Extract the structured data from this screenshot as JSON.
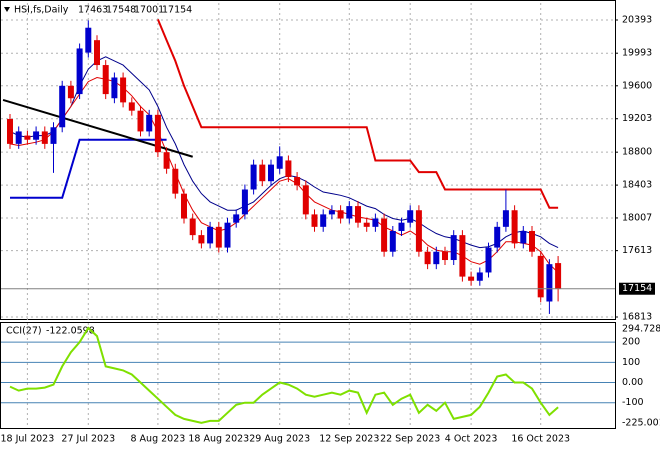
{
  "chart_data": [
    {
      "type": "candlestick",
      "title": "HSI,fs,Daily",
      "categories": [
        null,
        null,
        "18 Jul 2023",
        null,
        null,
        null,
        null,
        null,
        null,
        "27 Jul 2023",
        null,
        null,
        null,
        null,
        null,
        null,
        null,
        "8 Aug 2023",
        null,
        null,
        null,
        null,
        null,
        null,
        "18 Aug 2023",
        null,
        null,
        null,
        null,
        null,
        null,
        "29 Aug 2023",
        null,
        null,
        null,
        null,
        null,
        null,
        null,
        "12 Sep 2023",
        null,
        null,
        null,
        null,
        null,
        null,
        "22 Sep 2023",
        null,
        null,
        null,
        null,
        null,
        null,
        "4 Oct 2023",
        null,
        null,
        null,
        null,
        null,
        null,
        null,
        "16 Oct 2023",
        null,
        null
      ],
      "open": [
        19200,
        18900,
        19000,
        18950,
        19050,
        18900,
        19100,
        19600,
        19500,
        20000,
        20150,
        19850,
        19450,
        19700,
        19400,
        19300,
        19050,
        19250,
        18800,
        18600,
        18300,
        18000,
        17800,
        17700,
        17900,
        17650,
        17950,
        18050,
        18350,
        18650,
        18450,
        18600,
        18700,
        18500,
        18400,
        18050,
        17900,
        18050,
        18100,
        18000,
        18150,
        17950,
        17900,
        18000,
        17600,
        17850,
        17950,
        18100,
        17600,
        17450,
        17600,
        17500,
        17800,
        17300,
        17250,
        17350,
        17650,
        17900,
        18100,
        17700,
        17850,
        17550,
        17000,
        17463
      ],
      "high": [
        19260,
        19110,
        19060,
        19110,
        19110,
        19160,
        19660,
        19660,
        20110,
        20390,
        20210,
        19910,
        19760,
        19760,
        19460,
        19360,
        19310,
        19310,
        18860,
        18660,
        18360,
        18060,
        17860,
        17960,
        17960,
        18010,
        18110,
        18410,
        18710,
        18710,
        18710,
        18870,
        18760,
        18560,
        18460,
        18110,
        18110,
        18160,
        18160,
        18210,
        18210,
        18010,
        18060,
        18060,
        17910,
        18010,
        18160,
        18160,
        17660,
        17660,
        17660,
        17860,
        17860,
        17360,
        17410,
        17710,
        17960,
        18350,
        18160,
        17910,
        17910,
        17610,
        17510,
        17548
      ],
      "low": [
        18840,
        18840,
        18890,
        18890,
        18840,
        18550,
        19040,
        19390,
        19440,
        19940,
        19790,
        19440,
        19390,
        19340,
        19240,
        18990,
        18990,
        18740,
        18540,
        18240,
        17940,
        17740,
        17640,
        17640,
        17590,
        17590,
        17890,
        17990,
        18290,
        18390,
        18390,
        18540,
        18440,
        18340,
        17990,
        17840,
        17840,
        17990,
        17940,
        17940,
        17890,
        17840,
        17840,
        17540,
        17540,
        17790,
        17890,
        17540,
        17390,
        17390,
        17440,
        17440,
        17240,
        17190,
        17190,
        17290,
        17590,
        17840,
        17640,
        17640,
        17540,
        16990,
        16850,
        17001
      ],
      "close": [
        18900,
        19050,
        18950,
        19050,
        18900,
        19100,
        19600,
        19450,
        20050,
        20300,
        19850,
        19500,
        19700,
        19400,
        19300,
        19050,
        19250,
        18800,
        18600,
        18300,
        18000,
        17800,
        17700,
        17900,
        17650,
        17950,
        18050,
        18350,
        18650,
        18450,
        18650,
        18750,
        18500,
        18400,
        18050,
        17900,
        18050,
        18100,
        18000,
        18150,
        17950,
        17900,
        18000,
        17600,
        17850,
        17950,
        18100,
        17600,
        17450,
        17600,
        17500,
        17800,
        17300,
        17250,
        17350,
        17650,
        17900,
        18100,
        17700,
        17850,
        17600,
        17050,
        17450,
        17154
      ],
      "up_color": "#0000cd",
      "down_color": "#e00000",
      "overlays": [
        {
          "color": "#00008b",
          "width": 1,
          "values": [
            19050,
            19000,
            18980,
            19000,
            19000,
            19050,
            19200,
            19350,
            19600,
            19800,
            19900,
            19950,
            19900,
            19850,
            19750,
            19650,
            19550,
            19350,
            19100,
            18900,
            18650,
            18450,
            18300,
            18200,
            18150,
            18100,
            18100,
            18150,
            18200,
            18300,
            18400,
            18480,
            18520,
            18500,
            18450,
            18380,
            18320,
            18300,
            18280,
            18250,
            18200,
            18150,
            18120,
            18050,
            18000,
            17980,
            18000,
            17950,
            17880,
            17820,
            17780,
            17760,
            17720,
            17680,
            17650,
            17660,
            17700,
            17780,
            17830,
            17850,
            17820,
            17780,
            17700,
            17650
          ]
        },
        {
          "color": "#e00000",
          "width": 1,
          "values": [
            18900,
            18880,
            18900,
            18920,
            18950,
            19050,
            19200,
            19350,
            19500,
            19650,
            19700,
            19680,
            19650,
            19580,
            19480,
            19350,
            19250,
            19050,
            18800,
            18550,
            18300,
            18100,
            17950,
            17900,
            17850,
            17880,
            17950,
            18050,
            18150,
            18250,
            18350,
            18450,
            18480,
            18420,
            18300,
            18200,
            18150,
            18100,
            18080,
            18050,
            18020,
            18000,
            17980,
            17900,
            17850,
            17800,
            17850,
            17780,
            17680,
            17620,
            17600,
            17600,
            17550,
            17480,
            17450,
            17500,
            17600,
            17720,
            17720,
            17700,
            17680,
            17600,
            17450,
            17350
          ]
        },
        {
          "color": "#e00000",
          "width": 2,
          "values": [
            null,
            null,
            null,
            null,
            null,
            null,
            null,
            null,
            null,
            null,
            null,
            null,
            null,
            null,
            null,
            null,
            null,
            20400,
            20150,
            19900,
            19600,
            19350,
            19100,
            19100,
            19100,
            19100,
            19100,
            19100,
            19100,
            19100,
            19100,
            19100,
            19100,
            19100,
            19100,
            19100,
            19100,
            19100,
            19100,
            19100,
            19100,
            19100,
            18700,
            18700,
            18700,
            18700,
            18700,
            18560,
            18560,
            18560,
            18350,
            18350,
            18350,
            18350,
            18350,
            18350,
            18350,
            18350,
            18350,
            18350,
            18350,
            18350,
            18130,
            18130
          ]
        },
        {
          "color": "#0000cd",
          "width": 2,
          "values": [
            18250,
            18250,
            18250,
            18250,
            18250,
            18250,
            18250,
            18600,
            18950,
            18950,
            18950,
            18950,
            18950,
            18950,
            18950,
            18950,
            18950,
            18950,
            18950,
            null,
            null,
            null,
            null,
            null,
            null,
            null,
            null,
            null,
            null,
            null,
            null,
            null,
            null,
            null,
            null,
            null,
            null,
            null,
            null,
            null,
            null,
            null,
            null,
            null,
            null,
            null,
            null,
            null,
            null,
            null,
            null,
            null,
            null,
            null,
            null,
            null,
            null,
            null,
            null,
            null,
            null,
            null,
            null,
            null
          ]
        }
      ],
      "trendline": {
        "color": "#000000",
        "x": [
          -0.8,
          21
        ],
        "values": [
          19430,
          18745
        ]
      },
      "ylim": [
        16777,
        20598
      ],
      "yticks": [
        16813,
        17613,
        18007,
        18403,
        18800,
        19203,
        19600,
        19993,
        20393
      ],
      "grid": true
    },
    {
      "type": "line",
      "title": "CCI(27)",
      "color": "#7fe000",
      "values": [
        -20,
        -40,
        -30,
        -30,
        -25,
        -10,
        80,
        150,
        200,
        270,
        230,
        80,
        70,
        60,
        40,
        0,
        -40,
        -80,
        -120,
        -160,
        -180,
        -190,
        -200,
        -190,
        -190,
        -150,
        -110,
        -100,
        -100,
        -60,
        -30,
        0,
        -10,
        -30,
        -60,
        -70,
        -60,
        -50,
        -60,
        -40,
        -50,
        -150,
        -60,
        -50,
        -110,
        -80,
        -60,
        -150,
        -110,
        -140,
        -100,
        -180,
        -170,
        -160,
        -120,
        -50,
        30,
        40,
        0,
        0,
        -30,
        -100,
        -160,
        -122.0598
      ],
      "ylim": [
        -225.0011,
        294.7283
      ],
      "yticks": [
        200,
        100,
        {
          "value": 0,
          "label": "0.00"
        },
        -100
      ],
      "level_color": "#4682b4"
    }
  ]
}
